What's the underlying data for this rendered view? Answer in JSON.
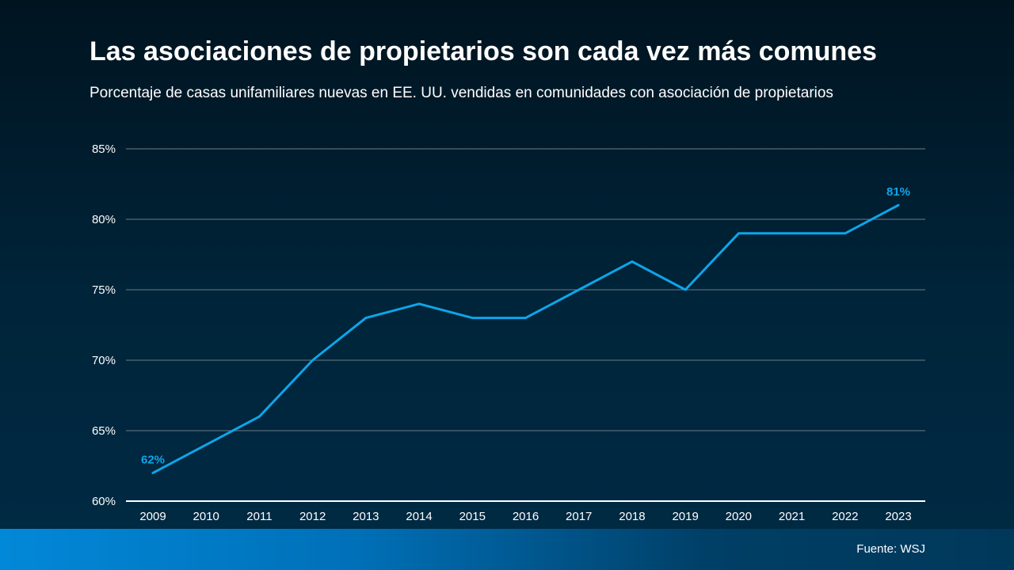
{
  "title": "Las asociaciones de propietarios son cada vez más comunes",
  "subtitle": "Porcentaje de casas unifamiliares nuevas en EE. UU. vendidas en comunidades con asociación de propietarios",
  "source": "Fuente: WSJ",
  "colors": {
    "line": "#0ea5e9",
    "label": "#0ea5e9",
    "grid": "#6b7b87",
    "axis": "#ffffff"
  },
  "chart_data": {
    "type": "line",
    "x": [
      "2009",
      "2010",
      "2011",
      "2012",
      "2013",
      "2014",
      "2015",
      "2016",
      "2017",
      "2018",
      "2019",
      "2020",
      "2021",
      "2022",
      "2023"
    ],
    "series": [
      {
        "values": [
          62,
          64,
          66,
          70,
          73,
          74,
          73,
          73,
          75,
          77,
          75,
          79,
          79,
          79,
          81
        ]
      }
    ],
    "ylim": [
      60,
      85
    ],
    "yticks": [
      60,
      65,
      70,
      75,
      80,
      85
    ],
    "ytick_labels": [
      "60%",
      "65%",
      "70%",
      "75%",
      "80%",
      "85%"
    ],
    "grid": true,
    "annotations": [
      {
        "x": "2009",
        "y": 62,
        "text": "62%"
      },
      {
        "x": "2023",
        "y": 81,
        "text": "81%"
      }
    ]
  }
}
